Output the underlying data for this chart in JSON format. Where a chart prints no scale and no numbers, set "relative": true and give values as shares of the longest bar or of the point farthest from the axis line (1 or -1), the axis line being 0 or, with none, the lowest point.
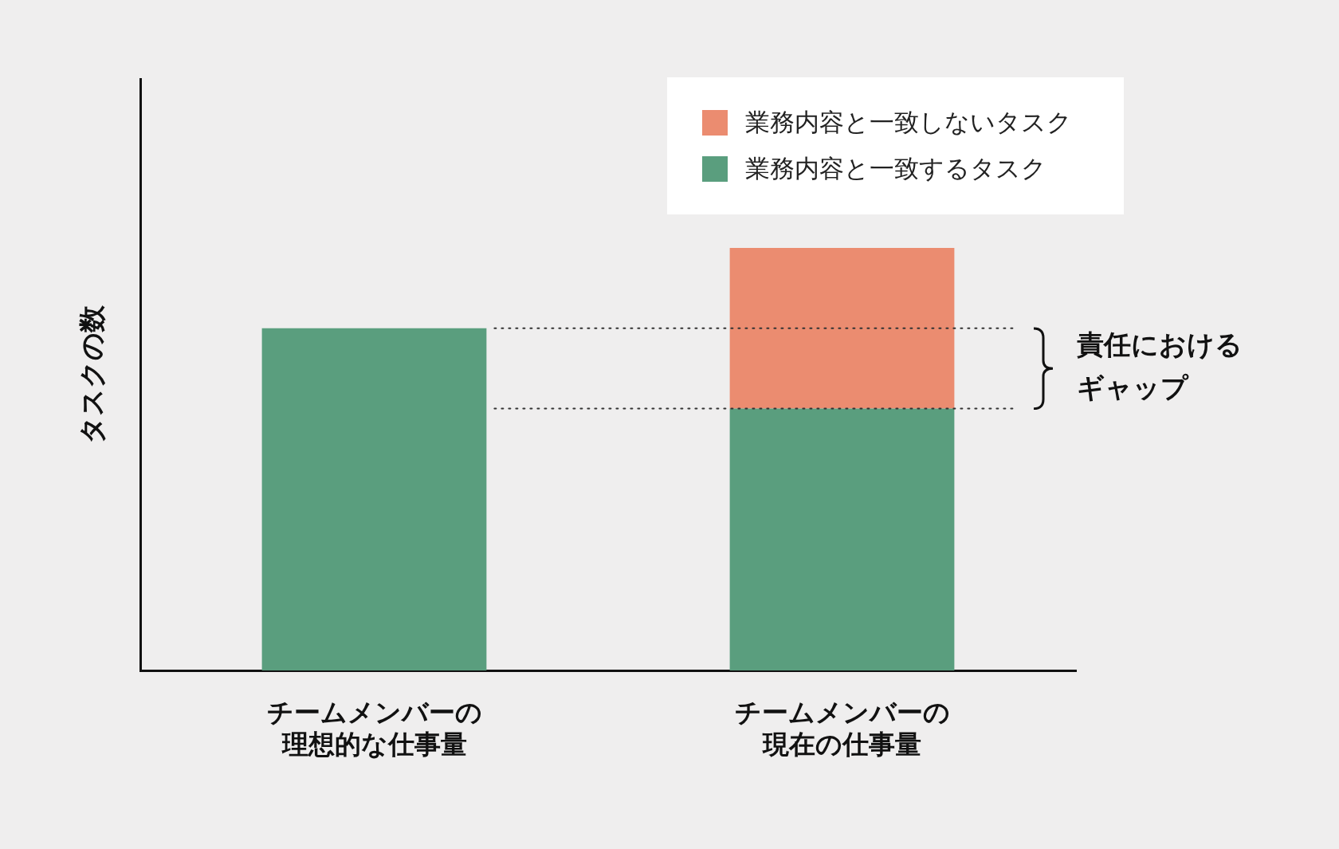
{
  "chart_data": {
    "type": "bar",
    "stacked": true,
    "relative": true,
    "ylabel": "タスクの数",
    "categories": [
      "チームメンバーの理想的な仕事量",
      "チームメンバーの現在の仕事量"
    ],
    "series": [
      {
        "name": "業務内容と一致するタスク",
        "color": "#5a9e7e",
        "values": [
          0.81,
          0.62
        ]
      },
      {
        "name": "業務内容と一致しないタスク",
        "color": "#eb8c70",
        "values": [
          0,
          0.38
        ]
      }
    ],
    "ref_lines": [
      {
        "axis": "y",
        "value": 0.81,
        "line_style": "dotted",
        "color": "#333333"
      },
      {
        "axis": "y",
        "value": 0.62,
        "line_style": "dotted",
        "color": "#333333"
      }
    ],
    "annotations": [
      "責任におけるギャップ"
    ],
    "legend": "top right",
    "grid": false
  }
}
